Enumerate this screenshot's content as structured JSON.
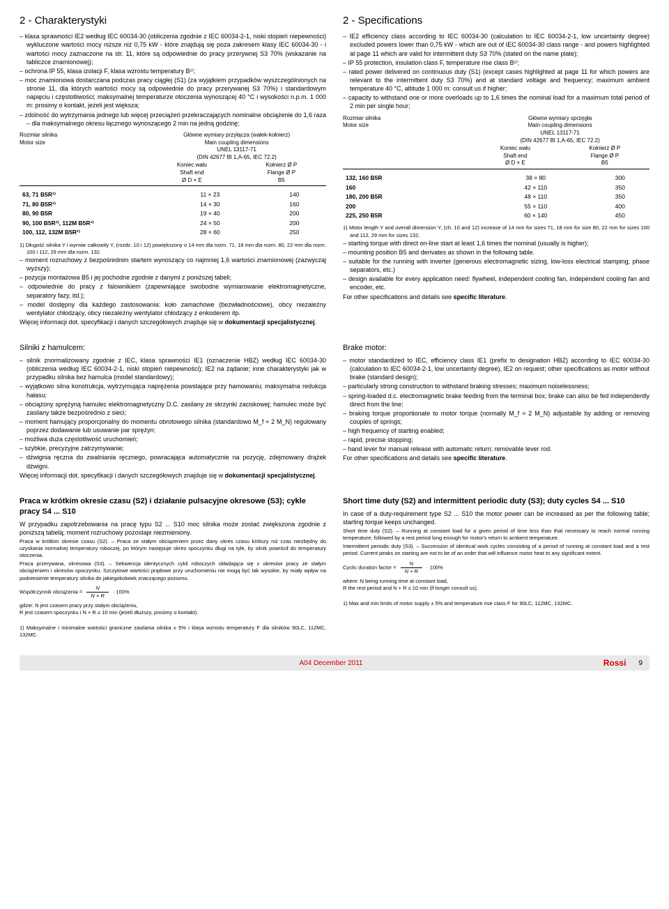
{
  "left": {
    "sec1_title": "2 - Charakterystyki",
    "sec1_items": [
      "klasa sprawności IE2 według IEC 60034-30 (obliczenia zgodnie z IEC 60034-2-1, niski stopień niepewności) wykluczone wartości mocy niższe niż 0,75 kW - które znajdują się poza zakresem klasy IEC 60034-30 - i wartości mocy zaznaczone na str. 11, które są odpowiednie do pracy przerywnej S3 70% (wskazanie na tabliczce znamionowej);",
      "ochrona IP 55, klasa izolacji F, klasa wzrostu temperatury B¹⁾;",
      "moc znamionowa dostarczana podczas pracy ciągłej (S1) (za wyjątkiem przypadków wyszczególnionych na stronie 11, dla których wartości mocy są odpowiednie do pracy przerywanej S3 70%) i standardowym napięciu i częstotliwości; maksymalnej temperaturze otoczenia wynoszącej 40 °C i wysokości n.p.m. 1 000 m: prosimy o kontakt, jeżeli jest większa;",
      "zdolność do wytrzymania jednego lub więcej przeciążeń przekraczających nominalne obciążenie do 1,6 raza – dla maksymalnego okresu łącznego wynoszącego 2 min na jedną godzinę;"
    ],
    "table1": {
      "head_left": "Rozmiar silnika\nMotor size",
      "head_right": "Główne wymiary przyłącza (wałek-kołnierz)\nMain coupling dimensions\nUNEL 13117-71\n(DIN 42677 Bl 1,A-65, IEC 72.2)",
      "sub_l": "Koniec wału\nShaft end\nØ D × E",
      "sub_r": "Kołnierz Ø P\nFlange Ø P\nB5",
      "rows": [
        [
          "63, 71 B5R¹⁾",
          "11 × 23",
          "140"
        ],
        [
          "71, 80 B5R¹⁾",
          "14 × 30",
          "160"
        ],
        [
          "80, 90 B5R",
          "19 × 40",
          "200"
        ],
        [
          "90, 100 B5R¹⁾, 112M B5R¹⁾",
          "24 × 50",
          "200"
        ],
        [
          "100, 112, 132M B5R¹⁾",
          "28 × 60",
          "250"
        ]
      ],
      "foot": "1) Długość silnika Y i wymiar całkowity Y, (rozdz. 10 i 12) powiększony o 14 mm dla rozm. 71, 18 mm dla rozm. 80, 22 mm dla rozm. 100 i 112, 29 mm dla rozm. 132."
    },
    "sec1_items2": [
      "moment rozruchowy z bezpośrednim startem wynoszący co najmniej 1,6 wartości znamionowej (zazwyczaj wyższy);",
      "pozycja montażowa B5 i jej pochodne zgodnie z danymi z poniższej tabeli;",
      "odpowiednie do pracy z falownikiem (zapewniające swobodne wymiarowanie elektromagnetyczne, separatory fazy, itd.);",
      "model dostępny dla każdego zastosowania: koło zamachowe (bezwładnościowe), obcy niezależny wentylator chłodzący, obcy niezależny wentylator chłodzący z enkoderem itp."
    ],
    "sec1_tail": "Więcej informacji dot. specyfikacji i danych szczegółowych znajduje się w dokumentacji specjalistycznej.",
    "sec2_title": "Silniki z hamulcem:",
    "sec2_items": [
      "silnik znormalizowany zgodnie z IEC, klasa sprawności IE1 (oznaczenie HBZ) według IEC 60034-30 (obliczenia według IEC 60034-2-1, niski stopień niepewności); IE2 na żądanie; inne charakterystyki jak w przypadku silnika bez hamulca (model standardowy);",
      "wyjątkowo silna konstrukcja, wytrzymująca naprężenia powstające przy hamowaniu; maksymalna redukcja hałasu;",
      "obciążony sprężyną hamulec elektromagnetyczny D.C. zasilany ze skrzynki zaciskowej; hamulec może być zasilany także bezpośrednio z sieci;",
      "moment hamujący proporcjonalny do momentu obrotowego silnika (standardowo M_f ≈ 2 M_N) regulowany poprzez dodawanie lub usuwanie par sprężyn;",
      "możliwa duża częstotliwość uruchomień;",
      "szybkie, precyzyjne zatrzymywanie;",
      "dźwignia ręczna do zwalniania ręcznego, powracająca automatycznie na pozycję, zdejmowany drążek dźwigni."
    ],
    "sec2_tail": "Więcej informacji dot. specyfikacji i danych szczegółowych znajduje się w dokumentacji specjalistycznej.",
    "sec3_title": "Praca w krótkim okresie czasu (S2) i działanie pulsacyjne okresowe (S3); cykle pracy S4 ... S10",
    "sec3_p1": "W przypadku zapotrzebowania na pracę typu S2 ... S10 moc silnika może zostać zwiększona zgodnie z poniższą tabelą; moment rozruchowy pozostaje niezmieniony.",
    "sec3_p2": "Praca w krótkim okresie czasu (S2). – Praca ze stałym obciążeniem przez dany okres czasu krótszy niż czas niezbędny do uzyskania normalnej temperatury roboczej, po którym następuje okres spoczynku długi na tyle, by silnik powrócił do temperatury otoczenia.",
    "sec3_p3": "Praca przerywana, okresowa (S3). – Sekwencja identycznych cykli roboczych składająca się z okresów pracy ze stałym obciążeniem i okresów spoczynku. Szczytowe wartości prądowe przy uruchomieniu nie mogą być tak wysokie, by miały wpływ na podniesienie temperatury silnika do jakiegokolwiek znaczącego poziomu.",
    "sec3_formula_label": "Współczynnik obciążenia =",
    "sec3_formula": "N / (N + R) · 100%",
    "sec3_where": "gdzie: N jest czasem pracy przy stałym obciążeniu,\n          R jest czasem spoczynku i N + R ≤ 10 min (jeżeli dłuższy, prosimy o kontakt).",
    "sec3_foot": "1) Maksymalne i minimalne wartości graniczne zasilania silnika ± 5% i klasa wzrostu temperatury F dla silników 90LC, 112MC, 132MC."
  },
  "right": {
    "sec1_title": "2 - Specifications",
    "sec1_items": [
      "IE2 efficiency class according to IEC 60034-30 (calculation to IEC 60034-2-1, low uncertainty degree) excluded powers lower than 0,75 kW - which are out of IEC 60034-30 class range - and powers highlighted at page 11 which are valid for intermittent duty S3 70% (stated on the name plate);",
      "IP 55 protection, insulation class F, temperature rise class B¹⁾;",
      "rated power delivered on continuous duty (S1) (except cases highlighted at page 11 for which powers are relevant to the intermittent duty S3 70%) and at standard voltage and frequency; maximum ambient temperature 40 °C, altitude 1 000 m: consult us if higher;",
      "capacity to withstand one or more overloads up to 1,6 times the nominal load for a maximum total period of 2 min per single hour;"
    ],
    "table1": {
      "head_left": "Rozmiar silnika\nMotor size",
      "head_right": "Główne wymiary sprzęgła\nMain coupling dimensions\nUNEL 13117-71\n(DIN 42677 Bl 1,A-65, IEC 72.2)",
      "sub_l": "Koniec wału\nShaft end\nØ D × E",
      "sub_r": "Kołnierz Ø P\nFlange Ø P\nB5",
      "rows": [
        [
          "132, 160 B5R",
          "38 × 80",
          "300"
        ],
        [
          "160",
          "42 × 110",
          "350"
        ],
        [
          "180, 200 B5R",
          "48 × 110",
          "350"
        ],
        [
          "200",
          "55 × 110",
          "400"
        ],
        [
          "225, 250 B5R",
          "60 × 140",
          "450"
        ]
      ],
      "foot": "1) Motor length Y and overall dimension Y, (ch. 10 and 12) increase of 14 mm for sizes 71, 18 mm for size 80, 22 mm for sizes 100 and 112, 29 mm for sizes 132."
    },
    "sec1_items2": [
      "starting torque with direct on-line start at least 1,6 times the nominal (usually is higher);",
      "mounting position B5 and derivates as shown in the following table.",
      "suitable for the running with inverter (generous electromagnetic sizing, low-loss electrical stamping, phase separators, etc.)",
      "design available for every application need: flywheel, independent cooling fan, independent cooling fan and encoder, etc."
    ],
    "sec1_tail": "For other specifications and details see specific literature.",
    "sec2_title": "Brake motor:",
    "sec2_items": [
      "motor standardized to IEC, efficiency class IE1 (prefix to designation HBZ) according to IEC 60034-30 (calculation to IEC 60034-2-1, low uncertainty degree), IE2 on request; other specifications as motor without brake (standard design);",
      "particularly strong construction to withstand braking stresses; maximum noiselessness;",
      "spring-loaded d.c. electromagnetic brake feeding from the terminal box; brake can also be fed independently direct from the line;",
      "braking torque proportionate to motor torque (normally M_f ≈ 2 M_N) adjustable by adding or removing couples of springs;",
      "high frequency of starting enabled;",
      "rapid, precise stopping;",
      "hand lever for manual release with automatic return; removable lever rod."
    ],
    "sec2_tail": "For other specifications and details see specific literature.",
    "sec3_title": "Short time duty (S2) and intermittent periodic duty (S3); duty cycles S4 ... S10",
    "sec3_p1": "In case of a duty-requirement type S2 ... S10 the motor power can be increased as per the following table; starting torque keeps unchanged.",
    "sec3_p2": "Short time duty (S2). – Running at constant load for a given period of time less than that necessary to reach normal running temperature, followed by a rest period long enough for motor's return to ambient temperature.",
    "sec3_p3": "Intermittent periodic duty (S3). – Succession of identical work cycles consisting of a period of running at constant load and a rest period. Current peaks on starting are not to be of an order that will influence motor heat to any significant extent.",
    "sec3_formula_label": "Cyclic duration factor =",
    "sec3_formula": "N / (N + R) · 100%",
    "sec3_where": "where: N being running time at constant load,\n           R the rest period and N + R ≤ 10 min (if longer consult us).",
    "sec3_foot": "1) Max and min limits of motor supply ± 5% and temperature rise class F for 90LC, 112MC, 132MC."
  },
  "footer": {
    "date": "A04 December 2011",
    "logo": "Rossi",
    "page": "9"
  }
}
